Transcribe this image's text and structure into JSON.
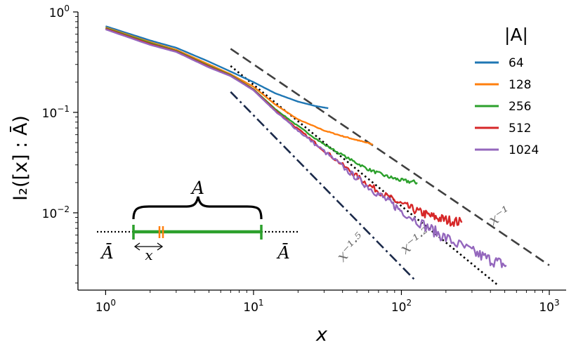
{
  "chart_data": {
    "type": "line",
    "xlabel": "x",
    "ylabel": "I₂([x] : Ā)",
    "xscale": "log",
    "yscale": "log",
    "xlim": [
      0.65,
      1300
    ],
    "ylim": [
      0.0017,
      1.0
    ],
    "x_ticks": [
      {
        "value": 1,
        "base": "10",
        "exp": "0"
      },
      {
        "value": 10,
        "base": "10",
        "exp": "1"
      },
      {
        "value": 100,
        "base": "10",
        "exp": "2"
      },
      {
        "value": 1000,
        "base": "10",
        "exp": "3"
      }
    ],
    "y_ticks": [
      {
        "value": 1,
        "base": "10",
        "exp": "0"
      },
      {
        "value": 0.1,
        "base": "10",
        "exp": "−1"
      },
      {
        "value": 0.01,
        "base": "10",
        "exp": "−2"
      }
    ],
    "legend": {
      "title": "|A|",
      "position": "upper right"
    },
    "series": [
      {
        "name": "64",
        "color": "#1f77b4",
        "noise": 0,
        "x": [
          1,
          2,
          3,
          5,
          7,
          10,
          14,
          20,
          26,
          32
        ],
        "y": [
          0.72,
          0.52,
          0.44,
          0.32,
          0.255,
          0.2,
          0.155,
          0.128,
          0.116,
          0.11
        ]
      },
      {
        "name": "128",
        "color": "#ff7f0e",
        "noise": 0.01,
        "x": [
          1,
          2,
          3,
          5,
          7,
          10,
          14,
          20,
          30,
          40,
          50,
          64
        ],
        "y": [
          0.7,
          0.5,
          0.42,
          0.3,
          0.24,
          0.18,
          0.12,
          0.085,
          0.066,
          0.058,
          0.053,
          0.048
        ]
      },
      {
        "name": "256",
        "color": "#2ca02c",
        "noise": 0.025,
        "x": [
          1,
          2,
          3,
          5,
          7,
          10,
          14,
          20,
          30,
          45,
          60,
          80,
          100,
          128
        ],
        "y": [
          0.69,
          0.49,
          0.41,
          0.29,
          0.235,
          0.17,
          0.108,
          0.073,
          0.048,
          0.034,
          0.027,
          0.023,
          0.021,
          0.02
        ]
      },
      {
        "name": "512",
        "color": "#d62728",
        "noise": 0.05,
        "x": [
          1,
          2,
          3,
          5,
          7,
          10,
          14,
          20,
          30,
          45,
          60,
          80,
          100,
          130,
          160,
          200,
          256
        ],
        "y": [
          0.68,
          0.48,
          0.405,
          0.285,
          0.232,
          0.168,
          0.105,
          0.068,
          0.042,
          0.026,
          0.019,
          0.0145,
          0.0122,
          0.0103,
          0.0092,
          0.0085,
          0.008
        ]
      },
      {
        "name": "1024",
        "color": "#9467bd",
        "noise": 0.06,
        "x": [
          1,
          2,
          3,
          5,
          7,
          10,
          14,
          20,
          30,
          45,
          60,
          80,
          100,
          150,
          200,
          300,
          400,
          512
        ],
        "y": [
          0.67,
          0.47,
          0.4,
          0.28,
          0.23,
          0.166,
          0.103,
          0.066,
          0.041,
          0.025,
          0.018,
          0.0133,
          0.0105,
          0.0072,
          0.0056,
          0.0041,
          0.0034,
          0.003
        ]
      }
    ],
    "reference_lines": [
      {
        "label": "x⁻¹",
        "style": "dashed",
        "color": "#404040",
        "x": [
          7,
          1000
        ],
        "y": [
          0.43,
          0.003
        ],
        "label_x": 480,
        "label_y": 0.0085,
        "label_angle": -33
      },
      {
        "label": "x⁻¹·²",
        "style": "dotted",
        "color": "#000000",
        "x": [
          7,
          450
        ],
        "y": [
          0.29,
          0.0019
        ],
        "label_x": 130,
        "label_y": 0.0048,
        "label_angle": -37
      },
      {
        "label": "x⁻¹·⁵",
        "style": "dashdot",
        "color": "#1b2a4a",
        "x": [
          7,
          125
        ],
        "y": [
          0.16,
          0.0021
        ],
        "label_x": 48,
        "label_y": 0.0042,
        "label_angle": -47
      }
    ]
  },
  "inset": {
    "brace_label": "A",
    "left_label": "Ā",
    "right_label": "Ā",
    "x_label": "x",
    "colors": {
      "segment": "#2ca02c",
      "subsegment": "#ff7f0e",
      "dots": "#000000"
    }
  }
}
